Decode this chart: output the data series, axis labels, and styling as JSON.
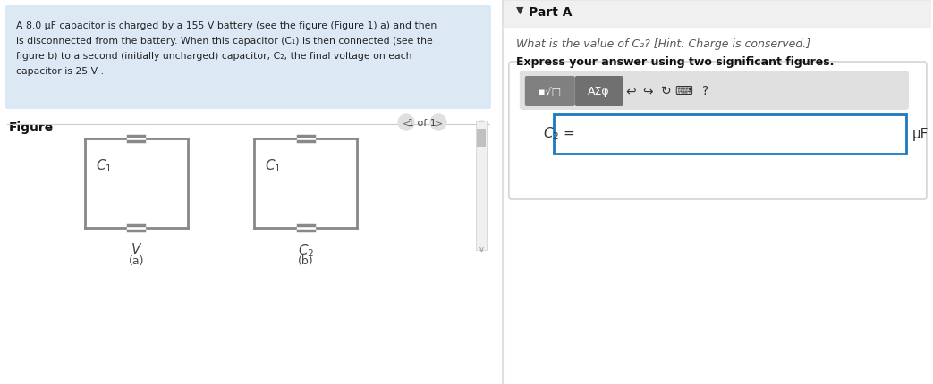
{
  "bg_color": "#ffffff",
  "left_panel_bg": "#dce9f5",
  "problem_text_line1": "A 8.0 μF capacitor is charged by a 155 V battery (see the figure (Figure 1) a) and then",
  "problem_text_line2": "is disconnected from the battery. When this capacitor (C₁) is then connected (see the",
  "problem_text_line3": "figure b) to a second (initially uncharged) capacitor, C₂, the final voltage on each",
  "problem_text_line4": "capacitor is 25 V .",
  "figure_label": "Figure",
  "nav_text": "1 of 1",
  "label_a": "(a)",
  "label_b": "(b)",
  "label_V": "V",
  "label_C1_a": "C₁",
  "label_C1_b": "C₁",
  "label_C2_b": "C₂",
  "divider_color": "#cccccc",
  "right_panel_bg": "#f5f5f5",
  "part_a_label": "Part A",
  "question_text": "What is the value of C₂? [Hint: Charge is conserved.]",
  "express_text": "Express your answer using two significant figures.",
  "c2_label": "C₂ =",
  "unit_label": "μF",
  "circuit_color": "#888888",
  "toolbar_bg": "#d0d0d0",
  "toolbar_btn1": "■√□",
  "toolbar_btn2": "AΣφ",
  "input_border_color": "#1a7abf",
  "scrollbar_color": "#c0c0c0"
}
